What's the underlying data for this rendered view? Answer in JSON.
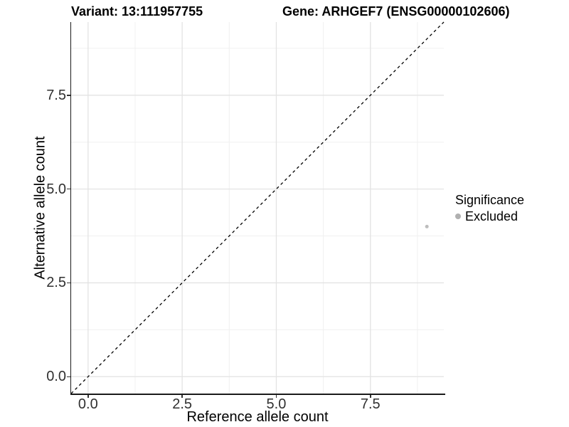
{
  "chart_data": {
    "type": "scatter",
    "title_left": "Variant: 13:111957755",
    "title_right": "Gene: ARHGEF7 (ENSG00000102606)",
    "xlabel": "Reference allele count",
    "ylabel": "Alternative allele count",
    "xlim": [
      -0.45,
      9.45
    ],
    "ylim": [
      -0.45,
      9.45
    ],
    "x_ticks": [
      0,
      2.5,
      5,
      7.5
    ],
    "x_tick_labels": [
      "0.0",
      "2.5",
      "5.0",
      "7.5"
    ],
    "y_ticks": [
      0,
      2.5,
      5,
      7.5
    ],
    "y_tick_labels": [
      "0.0",
      "2.5",
      "5.0",
      "7.5"
    ],
    "x_minor_ticks": [
      1.25,
      3.75,
      6.25,
      8.75
    ],
    "y_minor_ticks": [
      1.25,
      3.75,
      6.25,
      8.75
    ],
    "grid": "major+minor",
    "series": [
      {
        "name": "Excluded",
        "marker": "circle",
        "color": "#bdbdbd",
        "points": [
          {
            "x": 9,
            "y": 4
          }
        ]
      }
    ],
    "reference_line": {
      "kind": "identity",
      "slope": 1,
      "intercept": 0,
      "style": "dashed",
      "color": "#000000"
    },
    "legend": {
      "title": "Significance",
      "position": "right",
      "entries": [
        {
          "label": "Excluded",
          "marker": "circle",
          "color": "#b0b0b0"
        }
      ]
    }
  },
  "colors": {
    "background": "#ffffff",
    "axis_line": "#1a1a1a",
    "tick_label": "#303030",
    "grid_major": "#e3e3e3",
    "grid_minor": "#f0f0f0",
    "point": "#bdbdbd",
    "legend_marker": "#b0b0b0"
  }
}
